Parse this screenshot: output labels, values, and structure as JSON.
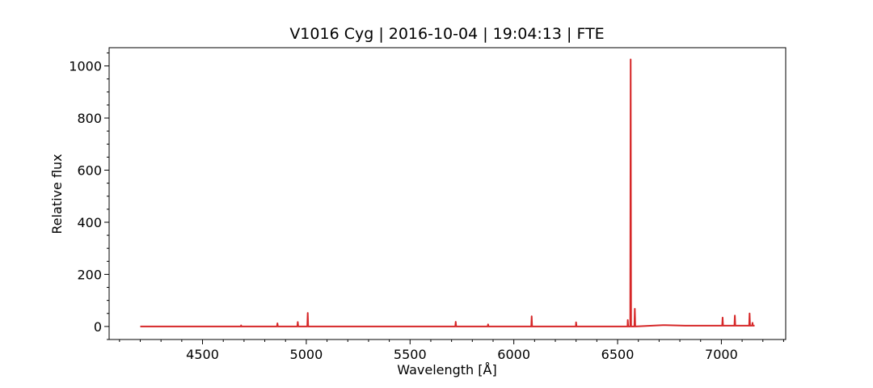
{
  "chart_data": {
    "type": "line",
    "title": "V1016 Cyg | 2016-10-04 | 19:04:13 | FTE",
    "xlabel": "Wavelength [Å]",
    "ylabel": "Relative flux",
    "xlim": [
      4050,
      7310
    ],
    "ylim": [
      -50,
      1070
    ],
    "xticks": [
      4500,
      5000,
      5500,
      6000,
      6500,
      7000
    ],
    "yticks": [
      0,
      200,
      400,
      600,
      800,
      1000
    ],
    "xtick_labels": [
      "4500",
      "5000",
      "5500",
      "6000",
      "6500",
      "7000"
    ],
    "ytick_labels": [
      "0",
      "200",
      "400",
      "600",
      "800",
      "1000"
    ],
    "grid": false,
    "series": [
      {
        "color": "#d62728",
        "x": [
          4200,
          4684,
          4686,
          4688,
          4859,
          4861,
          4863,
          4957,
          4959,
          4961,
          5005,
          5007,
          5009,
          5718,
          5720,
          5722,
          5874,
          5876,
          5878,
          6084,
          6086,
          6088,
          6299,
          6300,
          6302,
          6548,
          6549,
          6551,
          6561,
          6563,
          6565,
          6581,
          6583,
          6585,
          6718,
          6730,
          6825,
          6830,
          7004,
          7006,
          7008,
          7063,
          7065,
          7067,
          7134,
          7136,
          7138,
          7148,
          7150,
          7152,
          7160
        ],
        "y": [
          0,
          0,
          4,
          0,
          0,
          12,
          0,
          0,
          17,
          0,
          0,
          52,
          0,
          0,
          18,
          0,
          0,
          8,
          0,
          0,
          39,
          0,
          0,
          16,
          0,
          0,
          25,
          0,
          0,
          1025,
          0,
          0,
          68,
          0,
          5,
          5,
          3,
          3,
          3,
          34,
          3,
          3,
          42,
          3,
          3,
          50,
          3,
          3,
          14,
          3,
          3
        ]
      }
    ]
  }
}
